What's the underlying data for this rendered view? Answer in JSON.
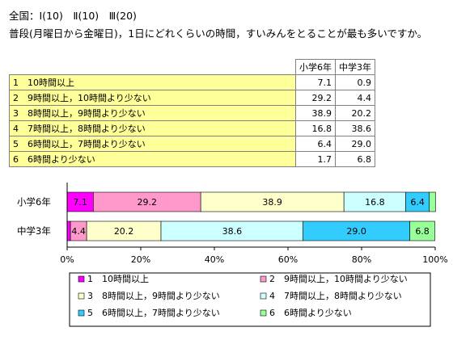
{
  "header": "全国：Ⅰ(10)　Ⅱ(10)　Ⅲ(20)",
  "question": "普段(月曜日から金曜日)，1日にどれくらいの時間，すいみんをとることが最も多いですか。",
  "table": {
    "columns": [
      "小学6年",
      "中学3年"
    ],
    "rows": [
      {
        "label": "1　10時間以上",
        "values": [
          "7.1",
          "0.9"
        ]
      },
      {
        "label": "2　9時間以上，10時間より少ない",
        "values": [
          "29.2",
          "4.4"
        ]
      },
      {
        "label": "3　8時間以上，9時間より少ない",
        "values": [
          "38.9",
          "20.2"
        ]
      },
      {
        "label": "4　7時間以上，8時間より少ない",
        "values": [
          "16.8",
          "38.6"
        ]
      },
      {
        "label": "5　6時間以上，7時間より少ない",
        "values": [
          "6.4",
          "29.0"
        ]
      },
      {
        "label": "6　6時間より少ない",
        "values": [
          "1.7",
          "6.8"
        ]
      }
    ]
  },
  "chart_data": {
    "type": "bar",
    "orientation": "horizontal",
    "stacked": true,
    "categories": [
      "小学6年",
      "中学3年"
    ],
    "series": [
      {
        "name": "1　10時間以上",
        "values": [
          7.1,
          0.9
        ],
        "color": "#ff00ff"
      },
      {
        "name": "2　9時間以上，10時間より少ない",
        "values": [
          29.2,
          4.4
        ],
        "color": "#ff99cc"
      },
      {
        "name": "3　8時間以上，9時間より少ない",
        "values": [
          38.9,
          20.2
        ],
        "color": "#ffffcc"
      },
      {
        "name": "4　7時間以上，8時間より少ない",
        "values": [
          16.8,
          38.6
        ],
        "color": "#ccffff"
      },
      {
        "name": "5　6時間以上，7時間より少ない",
        "values": [
          6.4,
          29.0
        ],
        "color": "#33ccff"
      },
      {
        "name": "6　6時間より少ない",
        "values": [
          1.7,
          6.8
        ],
        "color": "#99ff99"
      }
    ],
    "xlim": [
      0,
      100
    ],
    "xticks": [
      "0%",
      "20%",
      "40%",
      "60%",
      "80%",
      "100%"
    ],
    "data_labels_hidden": [
      "0.9",
      "1.7"
    ],
    "legend_position": "bottom"
  }
}
